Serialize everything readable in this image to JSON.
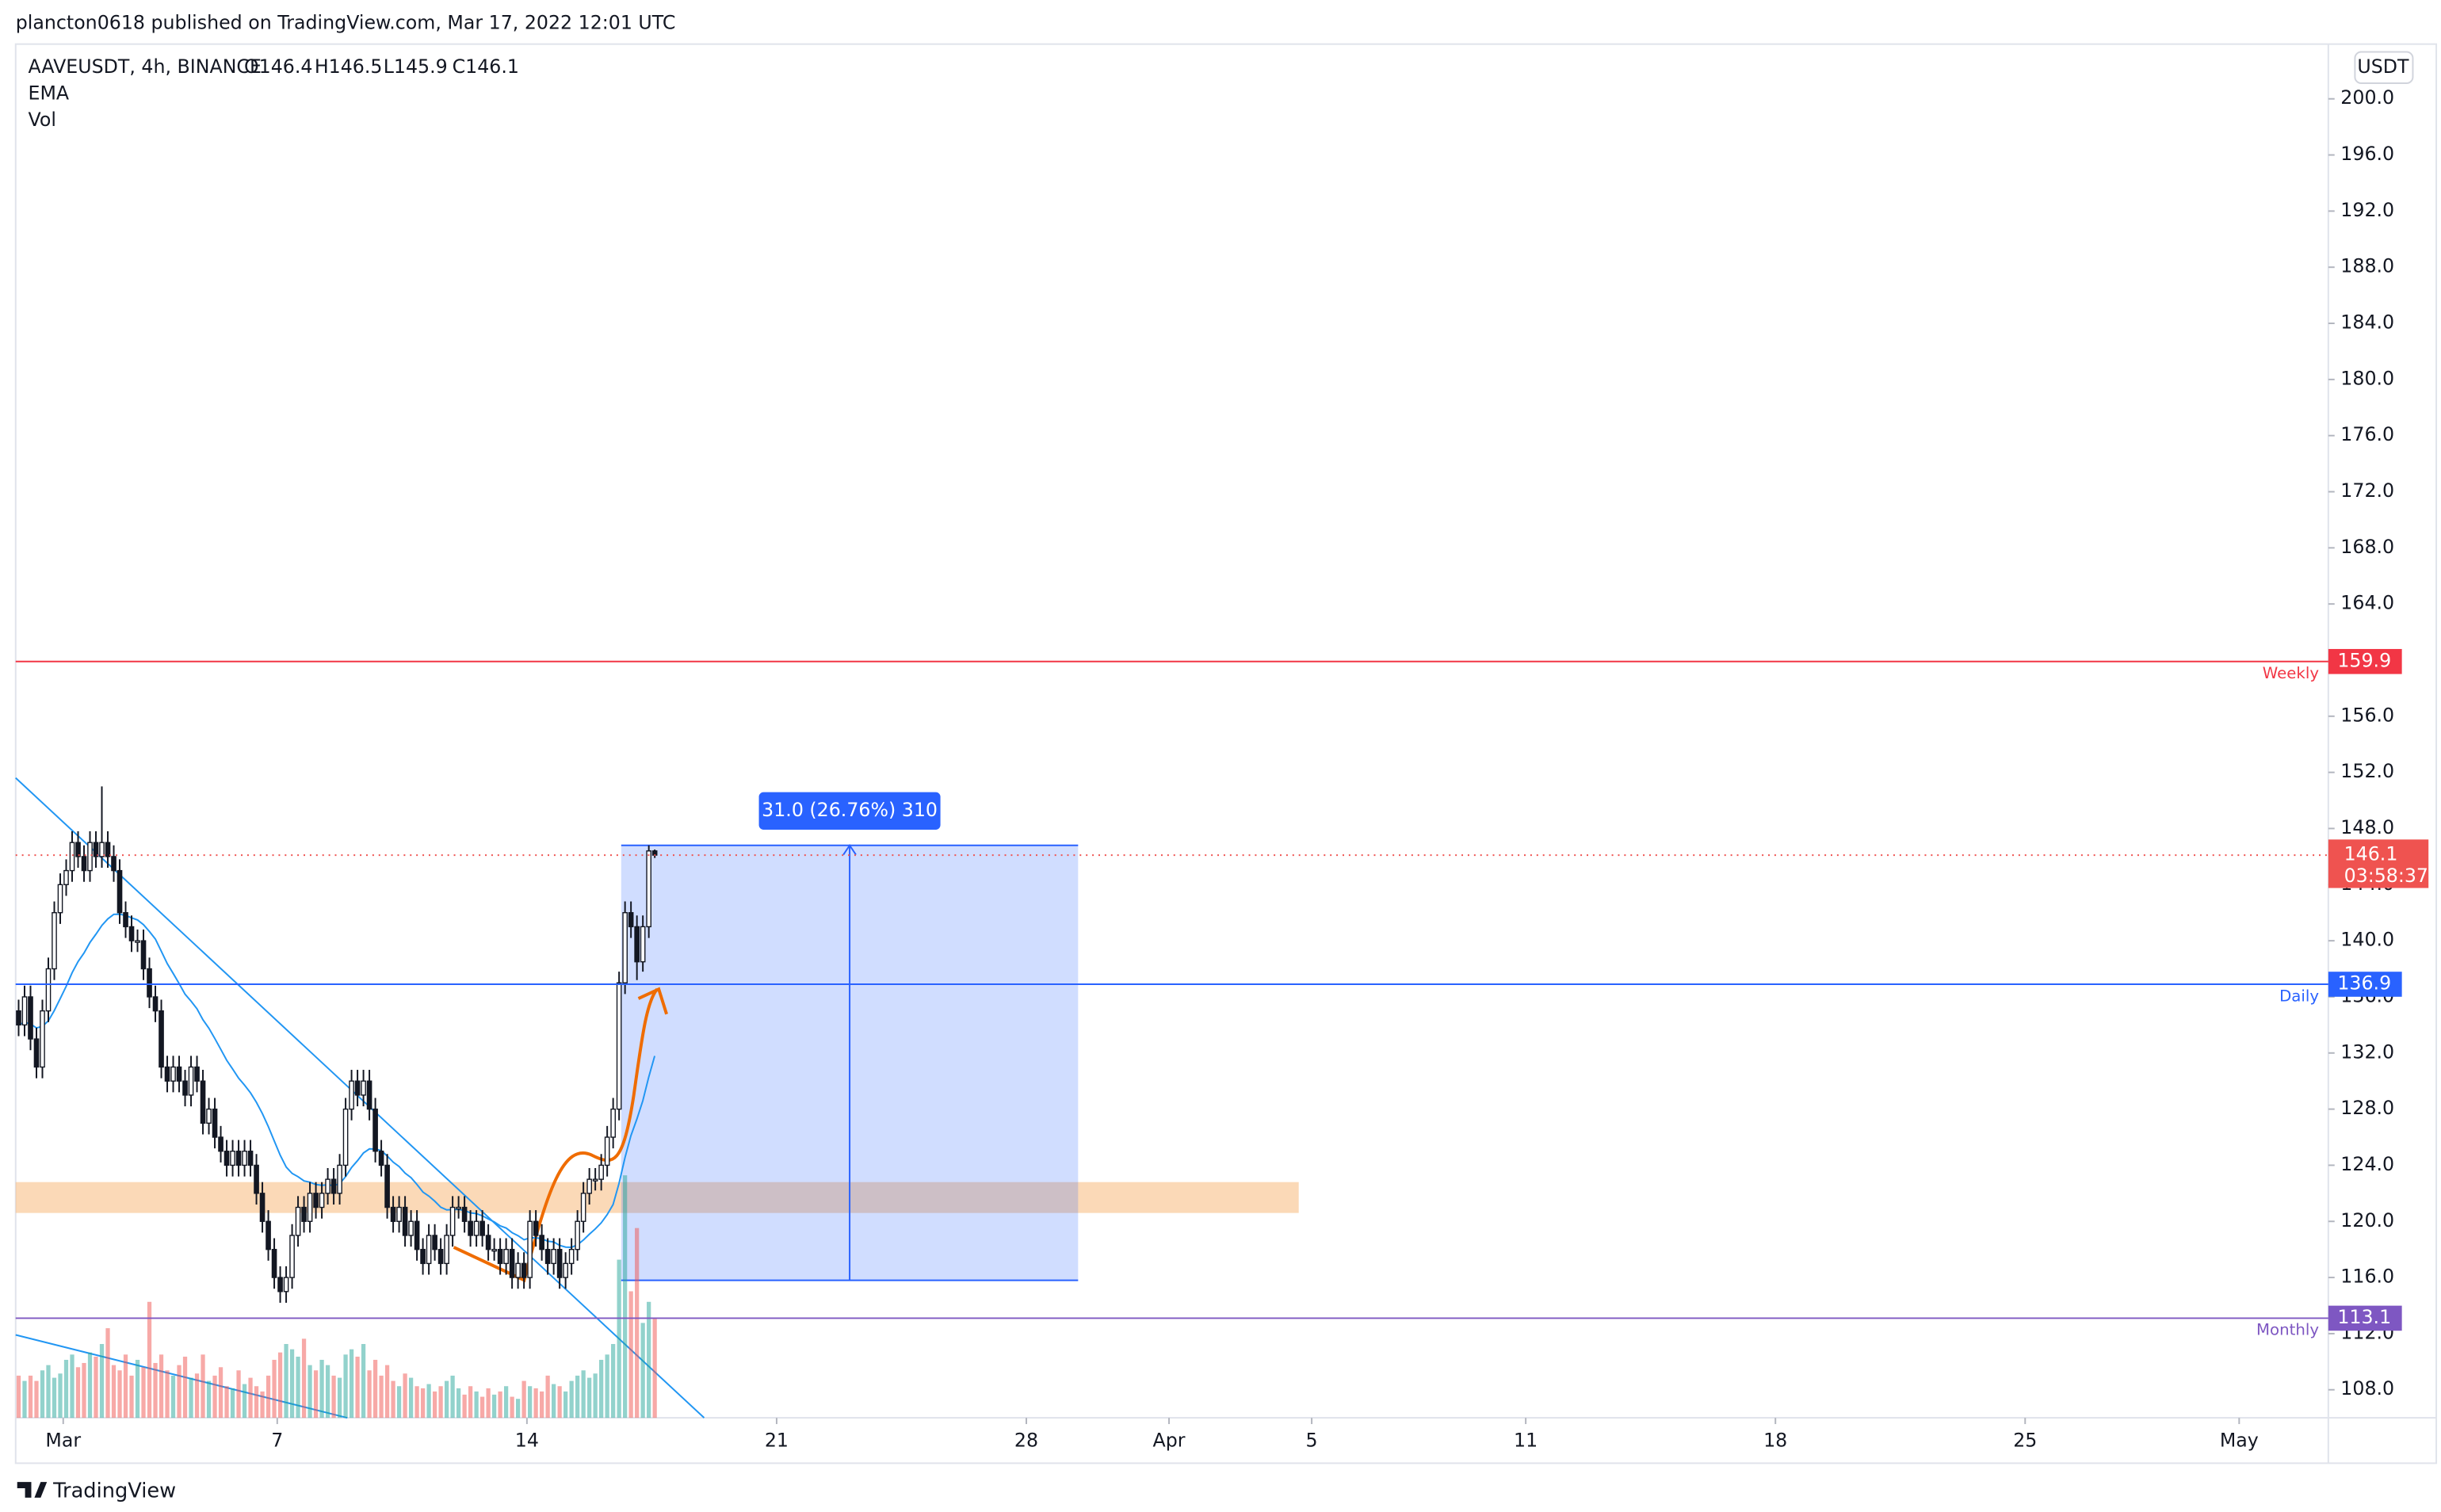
{
  "header": {
    "publisher": "plancton0618 published on TradingView.com, Mar 17, 2022 12:01 UTC"
  },
  "footer": {
    "brand": "TradingView"
  },
  "chart_data": {
    "type": "candlestick",
    "title": "AAVEUSDT, 4h, BINANCE",
    "legend": {
      "open": "O146.4",
      "high": "H146.5",
      "low": "L145.9",
      "close": "C146.1"
    },
    "indicators": [
      "EMA",
      "Vol"
    ],
    "currency": "USDT",
    "start": "Feb 27 16:00",
    "interval_hours": 4,
    "up_color": "#26a69a",
    "down_color": "#ef5350",
    "ema_color": "#2196f3",
    "ema_period": 20,
    "ohlc": [
      [
        135,
        135.8,
        133.2,
        134
      ],
      [
        134,
        136.8,
        133.2,
        136
      ],
      [
        136,
        136.8,
        132.2,
        133
      ],
      [
        133,
        133.8,
        130.2,
        131
      ],
      [
        131,
        135.8,
        130.2,
        135
      ],
      [
        135,
        138.8,
        134.2,
        138
      ],
      [
        138,
        142.8,
        137.2,
        142
      ],
      [
        142,
        144.8,
        141.2,
        144
      ],
      [
        144,
        145.8,
        143.2,
        145
      ],
      [
        145,
        147.8,
        144.2,
        147
      ],
      [
        147,
        147.8,
        145.2,
        146
      ],
      [
        146,
        146.8,
        144.2,
        145
      ],
      [
        145,
        147.8,
        144.2,
        147
      ],
      [
        147,
        147.8,
        145.2,
        146
      ],
      [
        146,
        151,
        145.2,
        147
      ],
      [
        147,
        147.8,
        145.2,
        146
      ],
      [
        146,
        146.8,
        144.2,
        145
      ],
      [
        145,
        145.8,
        141.2,
        142
      ],
      [
        142,
        142.8,
        140.2,
        141
      ],
      [
        141,
        141.8,
        139.2,
        140
      ],
      [
        140,
        140.8,
        139.2,
        140
      ],
      [
        140,
        140.8,
        137.2,
        138
      ],
      [
        138,
        138.8,
        135.2,
        136
      ],
      [
        136,
        136.8,
        134.2,
        135
      ],
      [
        135,
        135.8,
        130.2,
        131
      ],
      [
        131,
        131.8,
        129.2,
        130
      ],
      [
        130,
        131.8,
        129.2,
        131
      ],
      [
        131,
        131.8,
        129.2,
        130
      ],
      [
        130,
        130.8,
        128.2,
        129
      ],
      [
        129,
        131.8,
        128.2,
        131
      ],
      [
        131,
        131.8,
        129.2,
        130
      ],
      [
        130,
        130.8,
        126.2,
        127
      ],
      [
        127,
        128.8,
        126.2,
        128
      ],
      [
        128,
        128.8,
        125.2,
        126
      ],
      [
        126,
        126.8,
        124.2,
        125
      ],
      [
        125,
        125.8,
        123.2,
        124
      ],
      [
        124,
        125.8,
        123.2,
        125
      ],
      [
        125,
        125.8,
        123.2,
        124
      ],
      [
        124,
        125.8,
        123.2,
        125
      ],
      [
        125,
        125.8,
        123.2,
        124
      ],
      [
        124,
        124.8,
        121.2,
        122
      ],
      [
        122,
        122.8,
        119.2,
        120
      ],
      [
        120,
        120.8,
        117.2,
        118
      ],
      [
        118,
        118.8,
        115.2,
        116
      ],
      [
        116,
        116.8,
        114.2,
        115
      ],
      [
        115,
        116.8,
        114.2,
        116
      ],
      [
        116,
        119.8,
        115.2,
        119
      ],
      [
        119,
        121.8,
        118.2,
        121
      ],
      [
        121,
        121.8,
        119.2,
        120
      ],
      [
        120,
        122.8,
        119.2,
        122
      ],
      [
        122,
        122.8,
        120.2,
        121
      ],
      [
        121,
        122.8,
        120.2,
        122
      ],
      [
        122,
        123.8,
        121.2,
        123
      ],
      [
        123,
        123.8,
        121.2,
        122
      ],
      [
        122,
        124.8,
        121.2,
        124
      ],
      [
        124,
        128.8,
        123.2,
        128
      ],
      [
        128,
        130.8,
        127.2,
        130
      ],
      [
        130,
        130.8,
        128.2,
        129
      ],
      [
        129,
        130.8,
        128.2,
        130
      ],
      [
        130,
        130.8,
        127.2,
        128
      ],
      [
        128,
        128.8,
        124.2,
        125
      ],
      [
        125,
        125.8,
        123.2,
        124
      ],
      [
        124,
        124.8,
        120.2,
        121
      ],
      [
        121,
        121.8,
        119.2,
        120
      ],
      [
        120,
        121.8,
        119.2,
        121
      ],
      [
        121,
        121.8,
        118.2,
        119
      ],
      [
        119,
        120.8,
        118.2,
        120
      ],
      [
        120,
        120.8,
        117.2,
        118
      ],
      [
        118,
        118.8,
        116.2,
        117
      ],
      [
        117,
        119.8,
        116.2,
        119
      ],
      [
        119,
        119.8,
        117.2,
        118
      ],
      [
        118,
        118.8,
        116.2,
        117
      ],
      [
        117,
        119.8,
        116.2,
        119
      ],
      [
        119,
        121.8,
        118.2,
        121
      ],
      [
        121,
        121.8,
        120.2,
        121
      ],
      [
        121,
        121.8,
        119.2,
        120
      ],
      [
        120,
        120.8,
        118.2,
        119
      ],
      [
        119,
        120.8,
        118.2,
        120
      ],
      [
        120,
        120.8,
        118.2,
        119
      ],
      [
        119,
        119.8,
        117.2,
        118
      ],
      [
        118,
        118.8,
        117.2,
        118
      ],
      [
        118,
        118.8,
        116.2,
        117
      ],
      [
        117,
        118.8,
        116.2,
        118
      ],
      [
        118,
        118.8,
        115.2,
        116
      ],
      [
        116,
        117.8,
        115.2,
        117
      ],
      [
        117,
        117.8,
        115.2,
        116
      ],
      [
        116,
        120.8,
        115.2,
        120
      ],
      [
        120,
        120.8,
        118.2,
        119
      ],
      [
        119,
        119.8,
        117.2,
        118
      ],
      [
        118,
        118.8,
        116.2,
        117
      ],
      [
        117,
        118.8,
        116.2,
        118
      ],
      [
        118,
        118.8,
        115.2,
        116
      ],
      [
        116,
        117.8,
        115.2,
        117
      ],
      [
        117,
        118.8,
        116.2,
        118
      ],
      [
        118,
        120.8,
        117.2,
        120
      ],
      [
        120,
        122.8,
        119.2,
        122
      ],
      [
        122,
        123.8,
        121.2,
        123
      ],
      [
        123,
        123.8,
        122.2,
        123
      ],
      [
        123,
        124.8,
        122.2,
        124
      ],
      [
        124,
        126.8,
        123.2,
        126
      ],
      [
        126,
        128.8,
        125.2,
        128
      ],
      [
        128,
        137.8,
        127.2,
        137
      ],
      [
        137,
        142.8,
        136.2,
        142
      ],
      [
        142,
        142.8,
        140.2,
        141
      ],
      [
        141,
        141.8,
        137.2,
        138.5
      ],
      [
        138.5,
        141.8,
        137.8,
        141
      ],
      [
        141,
        146.8,
        140.2,
        146.4
      ],
      [
        146.4,
        146.5,
        145.9,
        146.1
      ]
    ],
    "volume": [
      40,
      35,
      40,
      35,
      45,
      50,
      38,
      42,
      55,
      60,
      48,
      52,
      62,
      58,
      70,
      85,
      50,
      45,
      60,
      40,
      55,
      48,
      110,
      52,
      60,
      45,
      40,
      50,
      58,
      38,
      42,
      60,
      35,
      40,
      48,
      30,
      28,
      45,
      32,
      38,
      30,
      25,
      40,
      55,
      62,
      70,
      65,
      58,
      75,
      50,
      45,
      55,
      50,
      40,
      38,
      60,
      65,
      58,
      70,
      45,
      55,
      40,
      50,
      35,
      30,
      42,
      38,
      30,
      28,
      32,
      25,
      30,
      35,
      40,
      28,
      22,
      30,
      25,
      20,
      28,
      22,
      25,
      30,
      20,
      18,
      35,
      30,
      28,
      25,
      40,
      32,
      30,
      25,
      35,
      40,
      45,
      38,
      42,
      55,
      60,
      70,
      150,
      230,
      120,
      180,
      90,
      110,
      95
    ],
    "ylim": [
      106.0,
      203.9
    ],
    "yticks": [
      {
        "value": 108,
        "label": "108.0"
      },
      {
        "value": 112,
        "label": "112.0"
      },
      {
        "value": 116,
        "label": "116.0"
      },
      {
        "value": 120,
        "label": "120.0"
      },
      {
        "value": 124,
        "label": "124.0"
      },
      {
        "value": 128,
        "label": "128.0"
      },
      {
        "value": 132,
        "label": "132.0"
      },
      {
        "value": 136,
        "label": "136.0"
      },
      {
        "value": 140,
        "label": "140.0"
      },
      {
        "value": 144,
        "label": "144.0"
      },
      {
        "value": 148,
        "label": "148.0"
      },
      {
        "value": 152,
        "label": "152.0"
      },
      {
        "value": 156,
        "label": "156.0"
      },
      {
        "value": 160,
        "label": "160.0"
      },
      {
        "value": 164,
        "label": "164.0"
      },
      {
        "value": 168,
        "label": "168.0"
      },
      {
        "value": 172,
        "label": "172.0"
      },
      {
        "value": 176,
        "label": "176.0"
      },
      {
        "value": 180,
        "label": "180.0"
      },
      {
        "value": 184,
        "label": "184.0"
      },
      {
        "value": 188,
        "label": "188.0"
      },
      {
        "value": 192,
        "label": "192.0"
      },
      {
        "value": 196,
        "label": "196.0"
      },
      {
        "value": 200,
        "label": "200.0"
      }
    ],
    "xlim": [
      "Feb 27 16:00",
      "May 3 12:00"
    ],
    "xticks": [
      {
        "value": "Mar 1",
        "label": "Mar"
      },
      {
        "value": "Mar 7",
        "label": "7"
      },
      {
        "value": "Mar 14",
        "label": "14"
      },
      {
        "value": "Mar 21",
        "label": "21"
      },
      {
        "value": "Mar 28",
        "label": "28"
      },
      {
        "value": "Apr 1",
        "label": "Apr"
      },
      {
        "value": "Apr 5",
        "label": "5"
      },
      {
        "value": "Apr 11",
        "label": "11"
      },
      {
        "value": "Apr 18",
        "label": "18"
      },
      {
        "value": "Apr 25",
        "label": "25"
      },
      {
        "value": "May 1",
        "label": "May"
      }
    ],
    "levels": [
      {
        "label": "Weekly",
        "value": 159.9,
        "color": "#f23645"
      },
      {
        "label": "Daily",
        "value": 136.9,
        "color": "#2962ff"
      },
      {
        "label": "Monthly",
        "value": 113.1,
        "color": "#7e57c2"
      }
    ],
    "last_price": {
      "value": 146.1,
      "countdown": "03:58:37",
      "color": "#ef5350"
    },
    "zone": {
      "low": 120.6,
      "high": 122.8,
      "color": "#f7ba7c"
    },
    "measure": {
      "from": 115.8,
      "to": 146.8,
      "label": "31.0 (26.76%) 310",
      "color": "#2962ff"
    }
  }
}
